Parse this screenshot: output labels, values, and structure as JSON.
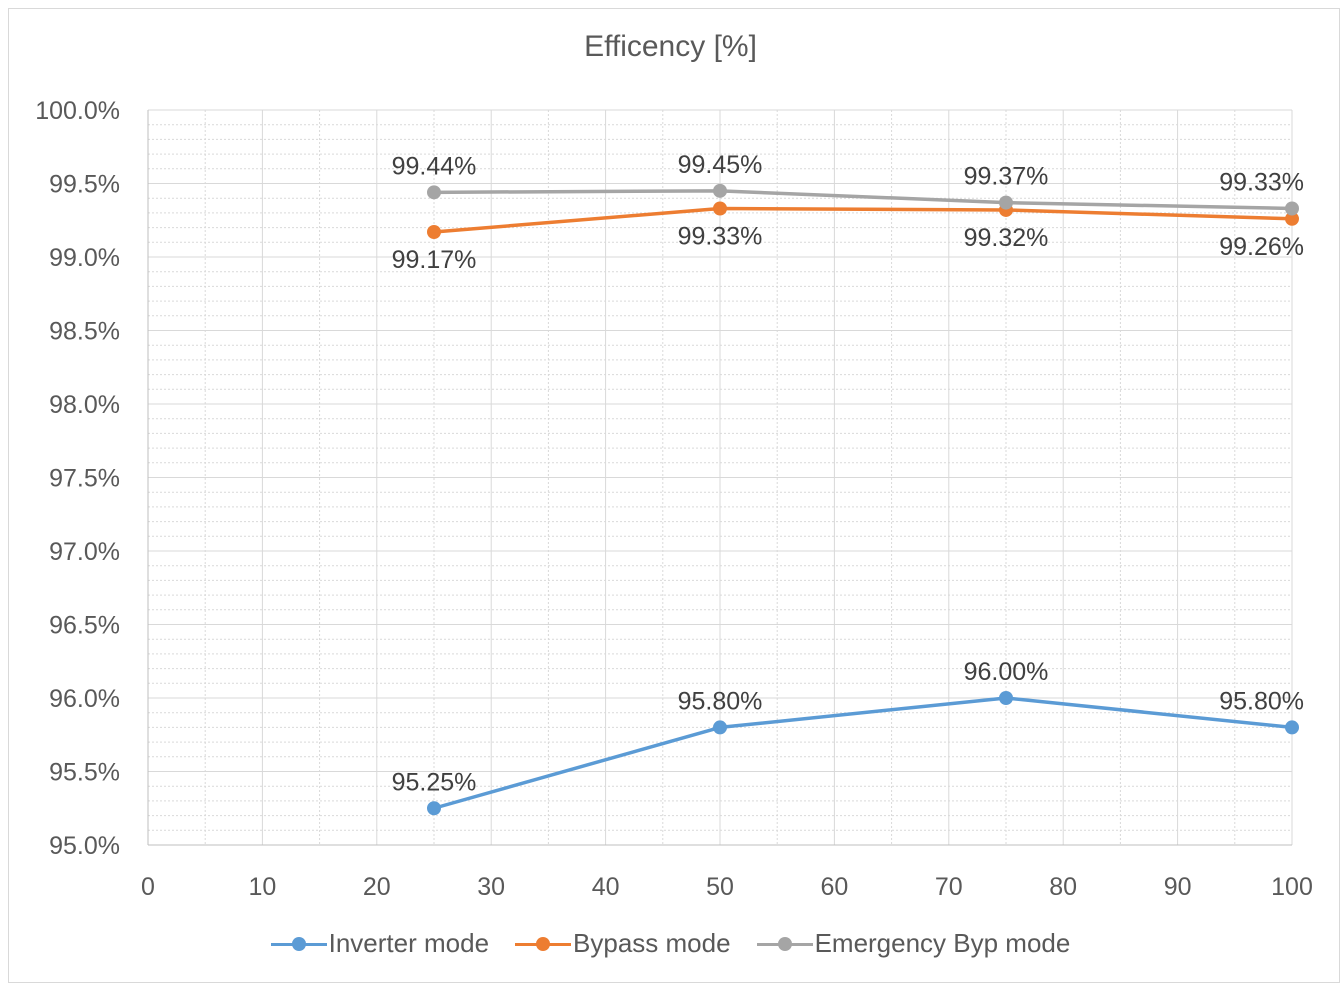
{
  "chart_data": {
    "type": "line",
    "title": "Efficency [%]",
    "x": [
      25,
      50,
      75,
      100
    ],
    "xlim": [
      0,
      100
    ],
    "xticks": [
      0,
      10,
      20,
      30,
      40,
      50,
      60,
      70,
      80,
      90,
      100
    ],
    "ylim": [
      95.0,
      100.0
    ],
    "yticks": [
      "95.0%",
      "95.5%",
      "96.0%",
      "96.5%",
      "97.0%",
      "97.5%",
      "98.0%",
      "98.5%",
      "99.0%",
      "99.5%",
      "100.0%"
    ],
    "grid": true,
    "legend_position": "bottom",
    "series": [
      {
        "name": "Inverter mode",
        "color": "#5b9bd5",
        "values": [
          95.25,
          95.8,
          96.0,
          95.8
        ],
        "labels": [
          "95.25%",
          "95.80%",
          "96.00%",
          "95.80%"
        ]
      },
      {
        "name": "Bypass mode",
        "color": "#ed7d31",
        "values": [
          99.17,
          99.33,
          99.32,
          99.26
        ],
        "labels": [
          "99.17%",
          "99.33%",
          "99.32%",
          "99.26%"
        ]
      },
      {
        "name": "Emergency Byp mode",
        "color": "#a5a5a5",
        "values": [
          99.44,
          99.45,
          99.37,
          99.33
        ],
        "labels": [
          "99.44%",
          "99.45%",
          "99.37%",
          "99.33%"
        ]
      }
    ]
  }
}
